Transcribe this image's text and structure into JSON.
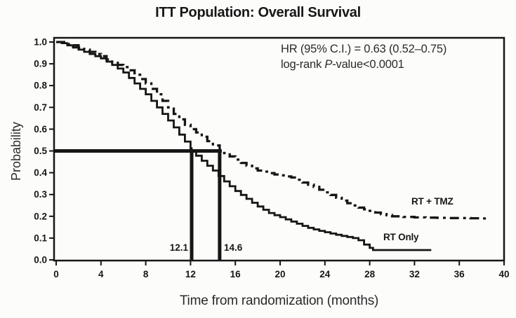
{
  "chart_data": {
    "type": "line",
    "subtype": "kaplan-meier-step",
    "title": "ITT Population: Overall Survival",
    "xlabel": "Time from randomization (months)",
    "ylabel": "Probability",
    "xlim": [
      0,
      40
    ],
    "ylim": [
      0.0,
      1.0
    ],
    "x_ticks": [
      0,
      4,
      8,
      12,
      16,
      20,
      24,
      28,
      32,
      36,
      40
    ],
    "y_tick_labels": [
      "1.0",
      "0.9",
      "0.8",
      "0.7",
      "0.6",
      "0.5",
      "0.4",
      "0.3",
      "0.2",
      "0.1",
      "0.0"
    ],
    "grid": false,
    "legend_position": "inline-right-of-curves",
    "line_color": "#161616",
    "annotations": {
      "hr_line": "HR (95% C.I.) = 0.63 (0.52–0.75)",
      "logrank_prefix": "log-rank ",
      "logrank_italic": "P",
      "logrank_suffix": "-value<0.0001"
    },
    "median_markers": {
      "probability": 0.5,
      "values": [
        12.1,
        14.6
      ],
      "labels": [
        "12.1",
        "14.6"
      ]
    },
    "series": [
      {
        "name": "RT + TMZ",
        "style": "dash-dot",
        "median_months": 14.6,
        "points": [
          [
            0,
            1.0
          ],
          [
            0.5,
            1.0
          ],
          [
            1,
            0.99
          ],
          [
            1.5,
            0.985
          ],
          [
            2,
            0.975
          ],
          [
            2.5,
            0.965
          ],
          [
            3,
            0.955
          ],
          [
            3.5,
            0.945
          ],
          [
            4,
            0.935
          ],
          [
            4.5,
            0.92
          ],
          [
            5,
            0.905
          ],
          [
            5.5,
            0.895
          ],
          [
            6,
            0.885
          ],
          [
            6.5,
            0.87
          ],
          [
            7,
            0.85
          ],
          [
            7.5,
            0.83
          ],
          [
            8,
            0.81
          ],
          [
            8.5,
            0.785
          ],
          [
            9,
            0.76
          ],
          [
            9.5,
            0.73
          ],
          [
            10,
            0.7
          ],
          [
            10.5,
            0.67
          ],
          [
            11,
            0.645
          ],
          [
            11.5,
            0.62
          ],
          [
            12,
            0.6
          ],
          [
            12.5,
            0.585
          ],
          [
            13,
            0.565
          ],
          [
            13.5,
            0.545
          ],
          [
            14,
            0.525
          ],
          [
            14.6,
            0.5
          ],
          [
            15,
            0.49
          ],
          [
            15.5,
            0.475
          ],
          [
            16,
            0.46
          ],
          [
            16.5,
            0.445
          ],
          [
            17,
            0.432
          ],
          [
            17.5,
            0.42
          ],
          [
            18,
            0.41
          ],
          [
            18.5,
            0.405
          ],
          [
            19,
            0.398
          ],
          [
            19.5,
            0.392
          ],
          [
            20,
            0.388
          ],
          [
            20.5,
            0.383
          ],
          [
            21,
            0.378
          ],
          [
            21.5,
            0.368
          ],
          [
            22,
            0.355
          ],
          [
            22.5,
            0.345
          ],
          [
            23,
            0.335
          ],
          [
            23.5,
            0.322
          ],
          [
            24,
            0.31
          ],
          [
            24.5,
            0.298
          ],
          [
            25,
            0.285
          ],
          [
            25.5,
            0.272
          ],
          [
            26,
            0.26
          ],
          [
            26.5,
            0.25
          ],
          [
            27,
            0.24
          ],
          [
            27.5,
            0.232
          ],
          [
            28,
            0.225
          ],
          [
            28.5,
            0.217
          ],
          [
            29,
            0.21
          ],
          [
            29.5,
            0.205
          ],
          [
            30,
            0.2
          ],
          [
            31,
            0.197
          ],
          [
            32,
            0.195
          ],
          [
            33,
            0.194
          ],
          [
            34,
            0.193
          ],
          [
            35,
            0.192
          ],
          [
            36,
            0.192
          ],
          [
            37,
            0.191
          ],
          [
            38,
            0.19
          ],
          [
            38.6,
            0.19
          ]
        ]
      },
      {
        "name": "RT Only",
        "style": "solid",
        "median_months": 12.1,
        "points": [
          [
            0,
            1.0
          ],
          [
            0.5,
            0.995
          ],
          [
            1,
            0.985
          ],
          [
            1.5,
            0.975
          ],
          [
            2,
            0.965
          ],
          [
            2.5,
            0.955
          ],
          [
            3,
            0.945
          ],
          [
            3.5,
            0.935
          ],
          [
            4,
            0.925
          ],
          [
            4.5,
            0.91
          ],
          [
            5,
            0.895
          ],
          [
            5.5,
            0.878
          ],
          [
            6,
            0.86
          ],
          [
            6.5,
            0.835
          ],
          [
            7,
            0.81
          ],
          [
            7.5,
            0.785
          ],
          [
            8,
            0.76
          ],
          [
            8.5,
            0.73
          ],
          [
            9,
            0.7
          ],
          [
            9.5,
            0.67
          ],
          [
            10,
            0.64
          ],
          [
            10.5,
            0.608
          ],
          [
            11,
            0.575
          ],
          [
            11.5,
            0.543
          ],
          [
            12,
            0.512
          ],
          [
            12.1,
            0.5
          ],
          [
            12.5,
            0.478
          ],
          [
            13,
            0.455
          ],
          [
            13.5,
            0.432
          ],
          [
            14,
            0.41
          ],
          [
            14.5,
            0.385
          ],
          [
            15,
            0.36
          ],
          [
            15.5,
            0.338
          ],
          [
            16,
            0.316
          ],
          [
            16.5,
            0.298
          ],
          [
            17,
            0.28
          ],
          [
            17.5,
            0.262
          ],
          [
            18,
            0.245
          ],
          [
            18.5,
            0.23
          ],
          [
            19,
            0.215
          ],
          [
            19.5,
            0.205
          ],
          [
            20,
            0.196
          ],
          [
            20.5,
            0.186
          ],
          [
            21,
            0.176
          ],
          [
            21.5,
            0.166
          ],
          [
            22,
            0.156
          ],
          [
            22.5,
            0.147
          ],
          [
            23,
            0.14
          ],
          [
            23.5,
            0.133
          ],
          [
            24,
            0.127
          ],
          [
            24.5,
            0.121
          ],
          [
            25,
            0.115
          ],
          [
            25.5,
            0.11
          ],
          [
            26,
            0.105
          ],
          [
            26.5,
            0.1
          ],
          [
            27,
            0.09
          ],
          [
            27.5,
            0.07
          ],
          [
            28,
            0.055
          ],
          [
            28.3,
            0.045
          ],
          [
            29,
            0.045
          ],
          [
            30,
            0.045
          ],
          [
            31,
            0.045
          ],
          [
            32,
            0.045
          ],
          [
            33,
            0.045
          ],
          [
            33.5,
            0.045
          ]
        ]
      }
    ]
  }
}
